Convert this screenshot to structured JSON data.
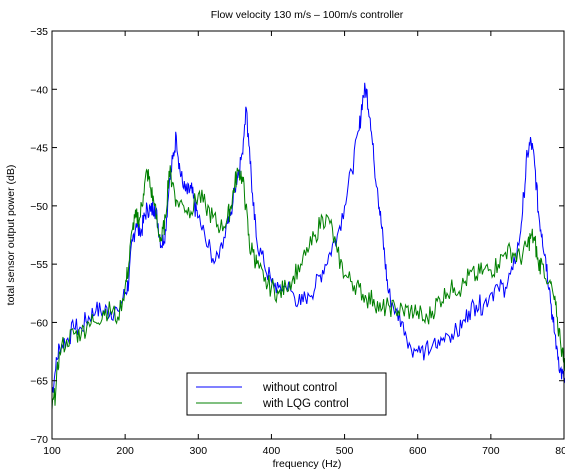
{
  "chart_data": {
    "type": "line",
    "title": "Flow velocity 130 m/s – 100m/s controller",
    "xlabel": "frequency (Hz)",
    "ylabel": "total sensor output power (dB)",
    "xlim": [
      100,
      800
    ],
    "ylim": [
      -70,
      -35
    ],
    "xticks": [
      100,
      200,
      300,
      400,
      500,
      600,
      700,
      800
    ],
    "yticks": [
      -70,
      -65,
      -60,
      -55,
      -50,
      -45,
      -40,
      -35
    ],
    "xtick_labels": [
      "100",
      "200",
      "300",
      "400",
      "500",
      "600",
      "700",
      "800"
    ],
    "ytick_labels": [
      "−70",
      "−65",
      "−60",
      "−55",
      "−50",
      "−45",
      "−40",
      "−35"
    ],
    "grid": false,
    "legend_position": "bottom-center",
    "series": [
      {
        "name": "without control",
        "color": "#0000ff",
        "x": [
          100,
          105,
          110,
          120,
          130,
          140,
          150,
          160,
          170,
          180,
          190,
          200,
          205,
          210,
          215,
          220,
          225,
          230,
          235,
          240,
          245,
          250,
          255,
          260,
          265,
          270,
          275,
          280,
          285,
          290,
          295,
          300,
          310,
          320,
          330,
          340,
          345,
          350,
          355,
          360,
          365,
          370,
          375,
          380,
          390,
          400,
          410,
          420,
          430,
          440,
          450,
          460,
          470,
          480,
          490,
          500,
          510,
          520,
          525,
          530,
          535,
          540,
          545,
          550,
          555,
          560,
          570,
          580,
          590,
          600,
          610,
          620,
          630,
          640,
          650,
          660,
          670,
          680,
          690,
          700,
          710,
          720,
          730,
          740,
          745,
          750,
          755,
          760,
          765,
          770,
          775,
          780,
          785,
          790,
          795,
          800,
          805
        ],
        "y": [
          -66,
          -64,
          -62,
          -61.5,
          -60.5,
          -60.5,
          -59.5,
          -59,
          -59,
          -59,
          -59,
          -57.5,
          -56.5,
          -53,
          -51.5,
          -52.5,
          -51.5,
          -50,
          -50.5,
          -50,
          -51.5,
          -53.5,
          -52,
          -48.5,
          -46,
          -44,
          -47,
          -48.5,
          -49,
          -48.5,
          -50,
          -51,
          -53,
          -54.5,
          -53.5,
          -51.5,
          -50.5,
          -48.5,
          -47,
          -45.5,
          -41.5,
          -45,
          -50,
          -53,
          -55,
          -56.5,
          -57,
          -57,
          -57.5,
          -58.5,
          -57.5,
          -57,
          -55.5,
          -54,
          -52.5,
          -50,
          -47,
          -43.5,
          -40.5,
          -40,
          -42.5,
          -46,
          -48.5,
          -51.5,
          -54.5,
          -57.5,
          -59,
          -60,
          -62,
          -62.5,
          -62.5,
          -62,
          -62,
          -61,
          -61,
          -60.5,
          -59,
          -58.5,
          -58.5,
          -57.5,
          -57,
          -57,
          -55.5,
          -52.5,
          -49,
          -45.5,
          -44.5,
          -46.5,
          -50.5,
          -52.5,
          -54.5,
          -57,
          -60,
          -62,
          -64,
          -65,
          -66
        ]
      },
      {
        "name": "with LQG control",
        "color": "#008000",
        "x": [
          100,
          105,
          110,
          120,
          130,
          140,
          150,
          160,
          170,
          180,
          190,
          200,
          205,
          210,
          215,
          220,
          225,
          230,
          235,
          240,
          245,
          250,
          255,
          260,
          265,
          270,
          280,
          290,
          300,
          310,
          320,
          330,
          340,
          345,
          350,
          355,
          360,
          365,
          370,
          375,
          380,
          390,
          400,
          410,
          420,
          430,
          440,
          450,
          460,
          470,
          480,
          490,
          500,
          510,
          520,
          530,
          540,
          550,
          560,
          570,
          580,
          590,
          600,
          610,
          620,
          630,
          640,
          650,
          660,
          670,
          680,
          690,
          700,
          710,
          720,
          730,
          740,
          750,
          755,
          760,
          765,
          770,
          780,
          785,
          790,
          795,
          800,
          805
        ],
        "y": [
          -67.5,
          -66,
          -62.5,
          -61.5,
          -61,
          -61,
          -60,
          -60,
          -59,
          -59,
          -59.5,
          -57,
          -55,
          -52,
          -51,
          -51,
          -49,
          -47,
          -48.5,
          -50,
          -52,
          -53,
          -51,
          -47,
          -48,
          -49.5,
          -50,
          -50.5,
          -49,
          -50,
          -51,
          -52,
          -51,
          -50,
          -48,
          -47,
          -47.5,
          -50,
          -53.5,
          -54,
          -55,
          -56.5,
          -57,
          -57.5,
          -57,
          -56,
          -55,
          -54,
          -52.5,
          -51,
          -51.5,
          -54,
          -56,
          -56.5,
          -57,
          -58,
          -58,
          -59,
          -58.5,
          -59,
          -59,
          -59,
          -59,
          -60,
          -59,
          -58,
          -57.5,
          -57,
          -57,
          -56,
          -56,
          -55.5,
          -55.5,
          -55,
          -54,
          -54,
          -54.5,
          -53.5,
          -52.5,
          -53,
          -55,
          -55,
          -56.5,
          -57.5,
          -59.5,
          -61.5,
          -63.5,
          -64.5
        ]
      }
    ]
  }
}
